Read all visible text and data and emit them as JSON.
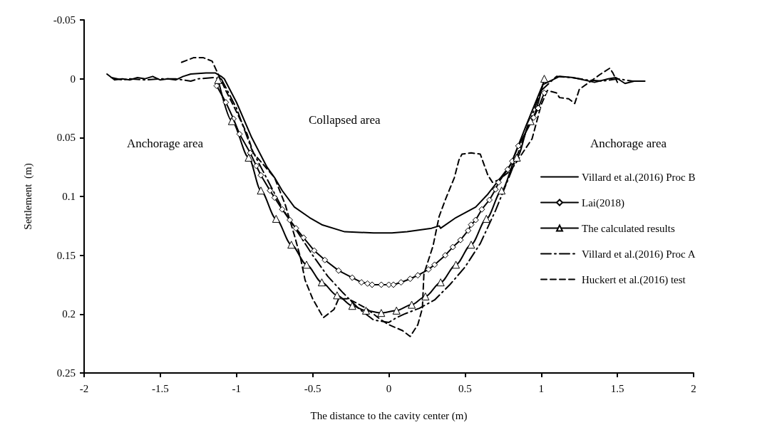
{
  "chart_data": {
    "type": "line",
    "xlabel": "The distance to the cavity center (m)",
    "ylabel": "Settlement  (m)",
    "xlim": [
      -2,
      2
    ],
    "xticks": [
      -2,
      -1.5,
      -1,
      -0.5,
      0,
      0.5,
      1,
      1.5,
      2
    ],
    "ylim": [
      0.25,
      -0.05
    ],
    "yticks": [
      -0.05,
      0,
      0.05,
      0.1,
      0.15,
      0.2,
      0.25
    ],
    "grid": false,
    "legend": "right",
    "annotations": [
      "Anchorage area",
      "Collapsed area",
      "Anchorage area"
    ],
    "series": [
      {
        "name": "Villard et al.(2016) Proc B",
        "color": "#000000",
        "marker": "none",
        "line_style": "solid",
        "x": [
          -1.85,
          -1.8,
          -1.75,
          -1.7,
          -1.65,
          -1.6,
          -1.55,
          -1.5,
          -1.45,
          -1.4,
          -1.35,
          -1.3,
          -1.2,
          -1.14,
          -1.1,
          -1.08,
          -1.0,
          -0.9,
          -0.8,
          -0.75,
          -0.7,
          -0.62,
          -0.52,
          -0.44,
          -0.29,
          -0.1,
          0.02,
          0.12,
          0.28,
          0.33,
          0.34,
          0.44,
          0.57,
          0.65,
          0.71,
          0.8,
          0.9,
          1.01,
          1.12,
          1.21,
          1.35,
          1.44,
          1.49,
          1.55,
          1.61,
          1.68
        ],
        "values": [
          -0.004,
          0.001,
          0.0,
          0.001,
          -0.001,
          0.0,
          -0.002,
          0.001,
          0.0,
          0.001,
          -0.002,
          -0.004,
          -0.005,
          -0.005,
          -0.002,
          0.0,
          0.02,
          0.05,
          0.075,
          0.084,
          0.095,
          0.109,
          0.118,
          0.124,
          0.13,
          0.131,
          0.131,
          0.13,
          0.127,
          0.125,
          0.127,
          0.118,
          0.109,
          0.098,
          0.088,
          0.073,
          0.04,
          0.005,
          -0.002,
          -0.001,
          0.003,
          0.0,
          -0.001,
          0.004,
          0.002,
          0.002
        ]
      },
      {
        "name": "Lai(2018)",
        "color": "#000000",
        "marker": "diamond",
        "line_style": "solid",
        "x": [
          -1.13,
          -1.07,
          -1.02,
          -0.98,
          -0.91,
          -0.87,
          -0.84,
          -0.78,
          -0.75,
          -0.7,
          -0.65,
          -0.61,
          -0.56,
          -0.49,
          -0.42,
          -0.33,
          -0.24,
          -0.18,
          -0.14,
          -0.11,
          -0.05,
          0.0,
          0.03,
          0.08,
          0.14,
          0.19,
          0.26,
          0.3,
          0.37,
          0.42,
          0.47,
          0.52,
          0.54,
          0.57,
          0.61,
          0.66,
          0.7,
          0.72,
          0.78,
          0.81,
          0.85,
          0.95,
          0.98,
          1.02
        ],
        "values": [
          0.006,
          0.02,
          0.034,
          0.047,
          0.063,
          0.074,
          0.082,
          0.095,
          0.101,
          0.111,
          0.12,
          0.127,
          0.135,
          0.146,
          0.154,
          0.163,
          0.169,
          0.173,
          0.174,
          0.175,
          0.175,
          0.175,
          0.175,
          0.173,
          0.17,
          0.167,
          0.162,
          0.158,
          0.15,
          0.143,
          0.137,
          0.129,
          0.124,
          0.12,
          0.111,
          0.103,
          0.094,
          0.088,
          0.077,
          0.07,
          0.057,
          0.033,
          0.025,
          0.012
        ]
      },
      {
        "name": "The calculated results",
        "color": "#000000",
        "marker": "triangle",
        "line_style": "solid",
        "x": [
          -1.12,
          -1.03,
          -0.92,
          -0.84,
          -0.74,
          -0.64,
          -0.54,
          -0.44,
          -0.34,
          -0.24,
          -0.15,
          -0.05,
          0.05,
          0.15,
          0.24,
          0.34,
          0.44,
          0.54,
          0.64,
          0.74,
          0.84,
          0.93,
          1.02
        ],
        "values": [
          0.001,
          0.036,
          0.067,
          0.095,
          0.119,
          0.141,
          0.158,
          0.173,
          0.184,
          0.193,
          0.197,
          0.199,
          0.197,
          0.192,
          0.185,
          0.173,
          0.158,
          0.141,
          0.119,
          0.095,
          0.067,
          0.036,
          0.0
        ]
      },
      {
        "name": "Villard et al.(2016) Proc A",
        "color": "#000000",
        "marker": "none",
        "line_style": "dashdot",
        "x": [
          -1.82,
          -1.75,
          -1.7,
          -1.6,
          -1.5,
          -1.4,
          -1.3,
          -1.25,
          -1.15,
          -1.1,
          -1.0,
          -0.9,
          -0.8,
          -0.7,
          -0.6,
          -0.5,
          -0.4,
          -0.3,
          -0.2,
          -0.1,
          0.0,
          0.05,
          0.1,
          0.2,
          0.3,
          0.4,
          0.5,
          0.6,
          0.7,
          0.8,
          0.9,
          1.0,
          1.1,
          1.2,
          1.3,
          1.4,
          1.5,
          1.6,
          1.65
        ],
        "values": [
          -0.001,
          0.001,
          0.0,
          0.001,
          0.0,
          0.0,
          0.002,
          0.0,
          -0.001,
          0.0,
          0.025,
          0.06,
          0.085,
          0.11,
          0.13,
          0.15,
          0.168,
          0.182,
          0.195,
          0.205,
          0.207,
          0.203,
          0.2,
          0.195,
          0.188,
          0.175,
          0.16,
          0.14,
          0.112,
          0.08,
          0.045,
          0.01,
          -0.002,
          -0.001,
          0.001,
          0.002,
          0.0,
          0.002,
          0.002
        ]
      },
      {
        "name": "Huckert et al.(2016) test",
        "color": "#000000",
        "marker": "none",
        "line_style": "dashed",
        "x": [
          -1.36,
          -1.28,
          -1.22,
          -1.16,
          -1.07,
          -1.0,
          -0.93,
          -0.89,
          -0.75,
          -0.68,
          -0.62,
          -0.58,
          -0.55,
          -0.5,
          -0.43,
          -0.36,
          -0.33,
          -0.27,
          -0.22,
          -0.15,
          -0.1,
          -0.05,
          0.0,
          0.09,
          0.14,
          0.19,
          0.22,
          0.23,
          0.29,
          0.33,
          0.37,
          0.43,
          0.46,
          0.48,
          0.54,
          0.6,
          0.65,
          0.68,
          0.72,
          0.8,
          0.94,
          1.0,
          1.04,
          1.1,
          1.12,
          1.18,
          1.22,
          1.25,
          1.39,
          1.45,
          1.47,
          1.5
        ],
        "values": [
          -0.014,
          -0.018,
          -0.018,
          -0.015,
          0.01,
          0.028,
          0.047,
          0.063,
          0.084,
          0.107,
          0.133,
          0.152,
          0.171,
          0.187,
          0.203,
          0.196,
          0.187,
          0.187,
          0.19,
          0.195,
          0.2,
          0.205,
          0.209,
          0.214,
          0.219,
          0.209,
          0.195,
          0.166,
          0.142,
          0.117,
          0.103,
          0.084,
          0.069,
          0.064,
          0.063,
          0.064,
          0.082,
          0.088,
          0.086,
          0.078,
          0.051,
          0.022,
          0.01,
          0.012,
          0.016,
          0.017,
          0.021,
          0.009,
          -0.004,
          -0.009,
          -0.005,
          0.003
        ]
      }
    ]
  }
}
